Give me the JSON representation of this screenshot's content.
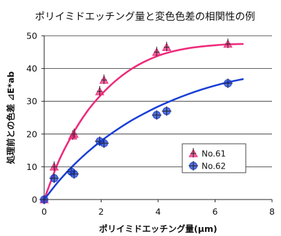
{
  "chart_data": {
    "type": "scatter",
    "title": "ポリイミドエッチング量と変色色差の相関性の例",
    "xlabel": "ポリイミドエッチング量(μm)",
    "ylabel": "処理前との色差 ⊿E*ab",
    "xlim": [
      0,
      8
    ],
    "ylim": [
      0,
      50
    ],
    "x_ticks": [
      "0",
      "2",
      "4",
      "6",
      "8"
    ],
    "y_ticks": [
      "0",
      "10",
      "20",
      "30",
      "40",
      "50"
    ],
    "grid": "horizontal",
    "legend_position": "lower-right",
    "colors": {
      "No.61": "#ee2a7b",
      "No.62": "#1a3fd6"
    },
    "series": [
      {
        "name": "No.61",
        "marker": "triangle",
        "points": [
          [
            0.0,
            0.0
          ],
          [
            0.35,
            10.0
          ],
          [
            1.0,
            19.5
          ],
          [
            1.05,
            20.0
          ],
          [
            1.95,
            33.0
          ],
          [
            2.1,
            36.5
          ],
          [
            3.95,
            45.0
          ],
          [
            4.3,
            46.5
          ],
          [
            6.45,
            47.5
          ]
        ],
        "trend": [
          [
            0.0,
            0.0
          ],
          [
            0.5,
            11.5
          ],
          [
            1.0,
            20.0
          ],
          [
            1.5,
            26.8
          ],
          [
            2.0,
            32.0
          ],
          [
            2.5,
            36.2
          ],
          [
            3.0,
            39.5
          ],
          [
            3.5,
            42.0
          ],
          [
            4.0,
            43.9
          ],
          [
            4.5,
            45.2
          ],
          [
            5.0,
            46.1
          ],
          [
            5.5,
            46.7
          ],
          [
            6.0,
            47.1
          ],
          [
            6.5,
            47.4
          ],
          [
            7.0,
            47.5
          ]
        ]
      },
      {
        "name": "No.62",
        "marker": "circle",
        "points": [
          [
            0.0,
            0.0
          ],
          [
            0.35,
            6.5
          ],
          [
            0.95,
            8.5
          ],
          [
            1.05,
            7.8
          ],
          [
            1.95,
            17.8
          ],
          [
            2.1,
            17.2
          ],
          [
            3.95,
            25.8
          ],
          [
            4.3,
            27.0
          ],
          [
            6.45,
            35.5
          ]
        ],
        "trend": [
          [
            0.0,
            0.0
          ],
          [
            0.5,
            5.5
          ],
          [
            1.0,
            10.2
          ],
          [
            1.5,
            14.3
          ],
          [
            2.0,
            17.9
          ],
          [
            2.5,
            21.0
          ],
          [
            3.0,
            23.8
          ],
          [
            3.5,
            26.2
          ],
          [
            4.0,
            28.4
          ],
          [
            4.5,
            30.3
          ],
          [
            5.0,
            32.0
          ],
          [
            5.5,
            33.5
          ],
          [
            6.0,
            34.8
          ],
          [
            6.5,
            35.9
          ],
          [
            7.0,
            36.8
          ]
        ]
      }
    ]
  }
}
